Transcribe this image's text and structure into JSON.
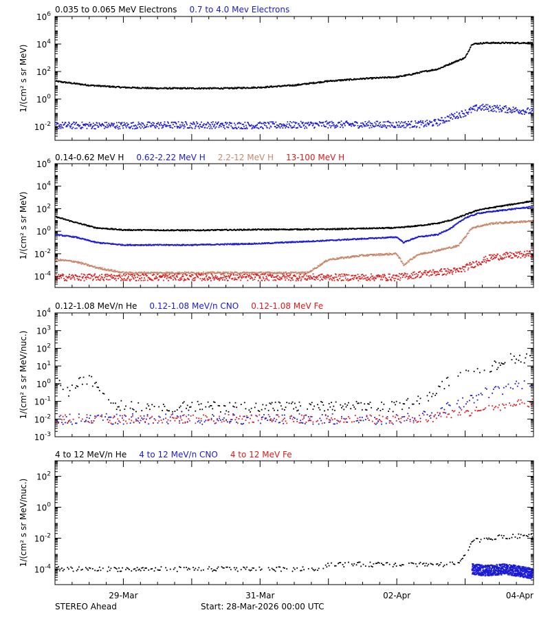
{
  "colors": {
    "black": "#000000",
    "blue": "#1a1ad6",
    "tan": "#c8876a",
    "red": "#e01818",
    "axis": "#000000"
  },
  "footer": {
    "left": "STEREO Ahead",
    "start": "Start: 28-Mar-2026 00:00 UTC"
  },
  "x_axis": {
    "ticks": [
      {
        "label": "29-Mar",
        "day": 1
      },
      {
        "label": "31-Mar",
        "day": 3
      },
      {
        "label": "02-Apr",
        "day": 5
      },
      {
        "label": "04-Apr",
        "day": 7
      }
    ]
  },
  "chart_data": [
    {
      "type": "scatter",
      "log_y": true,
      "x_range_days": [
        0,
        7
      ],
      "ylim": [
        0.001,
        1000000
      ],
      "ylabel": "1/(cm² s sr MeV)",
      "yticks": [
        {
          "v": 0.01,
          "e": "-2"
        },
        {
          "v": 1,
          "e": "0"
        },
        {
          "v": 100,
          "e": "2"
        },
        {
          "v": 10000,
          "e": "4"
        },
        {
          "v": 1000000,
          "e": "6"
        }
      ],
      "series": [
        {
          "name": "0.035 to 0.065 MeV Electrons",
          "color": "black",
          "x": [
            0,
            0.5,
            1,
            1.5,
            2,
            2.5,
            3,
            3.5,
            4,
            4.5,
            5,
            5.2,
            5.4,
            5.6,
            5.8,
            6,
            6.1,
            6.3,
            6.5,
            6.8,
            7
          ],
          "y": [
            20,
            10,
            7,
            6,
            6,
            6,
            7,
            10,
            20,
            30,
            40,
            60,
            100,
            150,
            400,
            1000,
            10000,
            12000,
            12000,
            12000,
            12000
          ],
          "scatter": 0.05
        },
        {
          "name": "0.7 to 4.0 Mev Electrons",
          "color": "blue",
          "x": [
            0,
            1,
            2,
            3,
            4,
            5,
            5.4,
            5.6,
            5.8,
            6,
            6.2,
            6.5,
            7
          ],
          "y": [
            0.012,
            0.012,
            0.013,
            0.012,
            0.014,
            0.014,
            0.015,
            0.02,
            0.05,
            0.1,
            0.25,
            0.2,
            0.12
          ],
          "scatter": 0.25
        }
      ]
    },
    {
      "type": "scatter",
      "log_y": true,
      "x_range_days": [
        0,
        7
      ],
      "ylim": [
        1e-05,
        1000000
      ],
      "ylabel": "1/(cm² s sr MeV)",
      "yticks": [
        {
          "v": 0.0001,
          "e": "-4"
        },
        {
          "v": 0.01,
          "e": "-2"
        },
        {
          "v": 1,
          "e": "0"
        },
        {
          "v": 100,
          "e": "2"
        },
        {
          "v": 10000,
          "e": "4"
        },
        {
          "v": 1000000,
          "e": "6"
        }
      ],
      "series": [
        {
          "name": "0.14-0.62 MeV H",
          "color": "black",
          "x": [
            0,
            0.3,
            0.6,
            1,
            2,
            3,
            4,
            5,
            5.3,
            5.6,
            5.8,
            6.2,
            6.6,
            7
          ],
          "y": [
            20,
            6,
            2,
            1.3,
            1.2,
            1.4,
            1.5,
            2,
            3,
            5,
            10,
            80,
            200,
            500
          ],
          "scatter": 0.05
        },
        {
          "name": "0.62-2.22 MeV H",
          "color": "blue",
          "x": [
            0,
            0.3,
            0.6,
            1,
            2,
            3,
            4,
            5,
            5.1,
            5.3,
            5.6,
            5.8,
            6,
            6.2,
            6.6,
            7
          ],
          "y": [
            0.5,
            0.3,
            0.1,
            0.06,
            0.06,
            0.08,
            0.15,
            0.3,
            0.1,
            0.3,
            0.5,
            2,
            15,
            40,
            80,
            150
          ],
          "scatter": 0.05
        },
        {
          "name": "2.2-12 MeV H",
          "color": "tan",
          "x": [
            0,
            0.3,
            0.6,
            1,
            2,
            3,
            3.7,
            4,
            4.5,
            5,
            5.1,
            5.3,
            5.6,
            5.9,
            6.1,
            6.4,
            7
          ],
          "y": [
            0.003,
            0.002,
            0.0006,
            0.0002,
            0.0002,
            0.0002,
            0.0002,
            0.003,
            0.007,
            0.01,
            0.001,
            0.008,
            0.02,
            0.05,
            2,
            5,
            8
          ],
          "scatter": 0.08
        },
        {
          "name": "13-100 MeV H",
          "color": "red",
          "x": [
            0,
            1,
            2,
            3,
            4,
            5,
            5.5,
            5.9,
            6.1,
            6.4,
            7
          ],
          "y": [
            8e-05,
            8e-05,
            8e-05,
            8e-05,
            8e-05,
            8e-05,
            0.0002,
            0.0003,
            0.001,
            0.005,
            0.01
          ],
          "scatter": 0.3
        }
      ]
    },
    {
      "type": "scatter",
      "log_y": true,
      "x_range_days": [
        0,
        7
      ],
      "ylim": [
        0.001,
        10000
      ],
      "ylabel": "1/(cm² s sr MeV/nuc.)",
      "yticks": [
        {
          "v": 0.001,
          "e": "-3"
        },
        {
          "v": 0.01,
          "e": "-2"
        },
        {
          "v": 0.1,
          "e": "-1"
        },
        {
          "v": 1,
          "e": "0"
        },
        {
          "v": 10,
          "e": "1"
        },
        {
          "v": 100,
          "e": "2"
        },
        {
          "v": 1000,
          "e": "3"
        },
        {
          "v": 10000,
          "e": "4"
        }
      ],
      "series": [
        {
          "name": "0.12-1.08 MeV/n He",
          "color": "black",
          "x": [
            0,
            0.2,
            0.4,
            0.5,
            0.6,
            0.8,
            1,
            2,
            3,
            4,
            5,
            5.5,
            5.7,
            6,
            6.3,
            6.6,
            7
          ],
          "y": [
            2,
            0.3,
            1.5,
            1.5,
            1,
            0.1,
            0.05,
            0.05,
            0.05,
            0.05,
            0.05,
            0.2,
            1,
            3,
            5,
            25,
            30
          ],
          "scatter": 0.3,
          "sparse": true
        },
        {
          "name": "0.12-1.08 MeV/n CNO",
          "color": "blue",
          "x": [
            0,
            0.5,
            1,
            2,
            3,
            4,
            5,
            5.5,
            5.7,
            6,
            6.3,
            6.6,
            7
          ],
          "y": [
            0.01,
            0.01,
            0.01,
            0.01,
            0.01,
            0.01,
            0.01,
            0.02,
            0.04,
            0.1,
            0.3,
            0.5,
            1.2
          ],
          "scatter": 0.3,
          "sparse": true
        },
        {
          "name": "0.12-1.08 MeV Fe",
          "color": "red",
          "x": [
            0,
            0.5,
            1,
            2,
            3,
            4,
            5,
            5.5,
            5.7,
            6,
            6.3,
            6.6,
            7
          ],
          "y": [
            0.01,
            0.01,
            0.01,
            0.01,
            0.01,
            0.01,
            0.01,
            0.01,
            0.02,
            0.02,
            0.04,
            0.06,
            0.08
          ],
          "scatter": 0.25,
          "sparse": true
        }
      ]
    },
    {
      "type": "scatter",
      "log_y": true,
      "x_range_days": [
        0,
        7
      ],
      "ylim": [
        1e-05,
        1000
      ],
      "ylabel": "1/(cm² s sr MeV/nuc.)",
      "yticks": [
        {
          "v": 0.0001,
          "e": "-4"
        },
        {
          "v": 0.01,
          "e": "-2"
        },
        {
          "v": 1,
          "e": "0"
        },
        {
          "v": 100,
          "e": "2"
        }
      ],
      "series": [
        {
          "name": "4 to 12 MeV/n He",
          "color": "black",
          "x": [
            0,
            1,
            2,
            3,
            3.8,
            4,
            5,
            5.5,
            5.9,
            6,
            6.1,
            6.3,
            6.6,
            7
          ],
          "y": [
            0.0001,
            0.0001,
            0.0001,
            0.0001,
            0.0001,
            0.0002,
            0.0002,
            0.0002,
            0.0002,
            0.001,
            0.006,
            0.01,
            0.012,
            0.015
          ],
          "scatter": 0.15,
          "sparse": true
        },
        {
          "name": "4 to 12 MeV/n CNO",
          "color": "blue",
          "x": [
            6.1,
            6.3,
            6.6,
            7
          ],
          "y": [
            0.0001,
            8e-05,
            0.0001,
            5e-05
          ],
          "scatter": 0.35
        },
        {
          "name": "4 to 12 MeV Fe",
          "color": "red",
          "x": [],
          "y": [],
          "scatter": 0
        }
      ]
    }
  ]
}
